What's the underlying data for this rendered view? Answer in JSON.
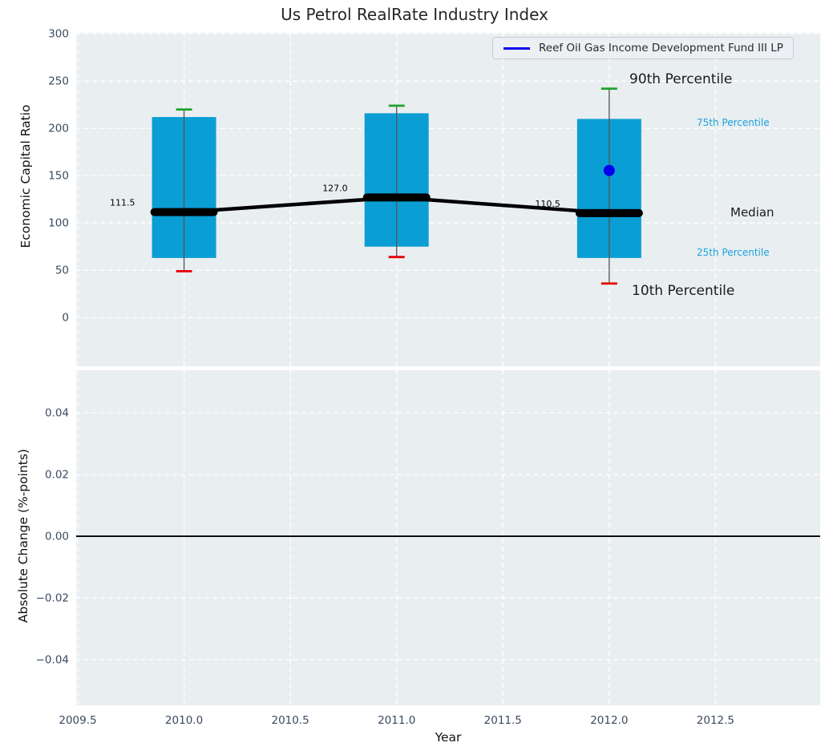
{
  "title": "Us Petrol RealRate Industry Index",
  "legend": {
    "label": "Reef Oil Gas Income Development Fund III LP"
  },
  "annotations": {
    "p90": "90th Percentile",
    "p75": "75th Percentile",
    "median": "Median",
    "p25": "25th Percentile",
    "p10": "10th Percentile"
  },
  "colors": {
    "axes_bg": "#e9eef0",
    "grid": "#ffffff",
    "box_fill": "#0a9ed5",
    "whisker": "#555555",
    "cap_high": "#21a12c",
    "cap_low": "#e50000",
    "median_line": "#000000",
    "fund": "#0000ee",
    "tick_label": "#3b4a61",
    "annotation_accent": "#1ba3dc",
    "zero_line": "#000000",
    "title_text": "#262626"
  },
  "chart_data": [
    {
      "type": "boxplot",
      "title": "Us Petrol RealRate Industry Index",
      "ylabel": "Economic Capital Ratio",
      "xlabel": "",
      "ylim": [
        -51.5,
        301
      ],
      "xlim": [
        2009.4925,
        2012.9925
      ],
      "yticks": [
        300,
        250,
        200,
        150,
        100,
        50,
        0
      ],
      "ytick_labels": [
        "300",
        "250",
        "200",
        "150",
        "100",
        "50",
        "0"
      ],
      "xticks": [
        2009.5,
        2010.0,
        2010.5,
        2011.0,
        2011.5,
        2012.0,
        2012.5
      ],
      "grid": true,
      "legend_position": "upper right",
      "series_label": "Reef Oil Gas Income Development Fund III LP",
      "boxes": [
        {
          "x": 2010,
          "p10": 49,
          "p25": 63,
          "median": 111.5,
          "p75": 212,
          "p90": 220,
          "median_label": "111.5"
        },
        {
          "x": 2011,
          "p10": 64,
          "p25": 75,
          "median": 127.0,
          "p75": 216,
          "p90": 224,
          "median_label": "127.0"
        },
        {
          "x": 2012,
          "p10": 36,
          "p25": 63,
          "median": 110.5,
          "p75": 210,
          "p90": 242,
          "median_label": "110.5"
        }
      ],
      "median_trend": {
        "x": [
          2010,
          2011,
          2012
        ],
        "y": [
          111.5,
          127.0,
          110.5
        ]
      },
      "fund_point": {
        "x": 2012,
        "y": 155.5
      }
    },
    {
      "type": "line",
      "ylabel": "Absolute Change (%-points)",
      "xlabel": "Year",
      "ylim": [
        -0.0548,
        0.0538
      ],
      "xlim": [
        2009.4925,
        2012.9925
      ],
      "yticks": [
        0.04,
        0.02,
        0.0,
        -0.02,
        -0.04
      ],
      "ytick_labels": [
        "0.04",
        "0.02",
        "0.00",
        "−0.02",
        "−0.04"
      ],
      "xticks": [
        2009.5,
        2010.0,
        2010.5,
        2011.0,
        2011.5,
        2012.0,
        2012.5
      ],
      "xtick_labels": [
        "2009.5",
        "2010.0",
        "2010.5",
        "2011.0",
        "2011.5",
        "2012.0",
        "2012.5"
      ],
      "zero_line": 0.0,
      "grid": true
    }
  ]
}
